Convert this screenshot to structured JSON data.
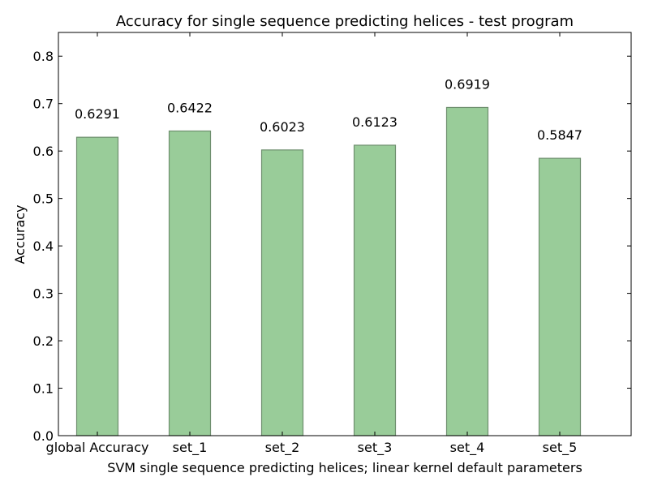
{
  "chart_data": {
    "type": "bar",
    "title": "Accuracy for single sequence predicting helices - test program",
    "xlabel": "SVM single sequence predicting helices; linear kernel default parameters",
    "ylabel": "Accuracy",
    "categories": [
      "global Accuracy",
      "set_1",
      "set_2",
      "set_3",
      "set_4",
      "set_5"
    ],
    "values": [
      0.6291,
      0.6422,
      0.6023,
      0.6123,
      0.6919,
      0.5847
    ],
    "value_labels": [
      "0.6291",
      "0.6422",
      "0.6023",
      "0.6123",
      "0.6919",
      "0.5847"
    ],
    "ylim": [
      0,
      0.85
    ],
    "yticks": [
      "0.0",
      "0.1",
      "0.2",
      "0.3",
      "0.4",
      "0.5",
      "0.6",
      "0.7",
      "0.8"
    ],
    "grid": false,
    "colors": {
      "bar_fill": "#99cc99",
      "bar_edge": "#6f8f6f",
      "axis": "#000000",
      "background": "#ffffff"
    }
  }
}
